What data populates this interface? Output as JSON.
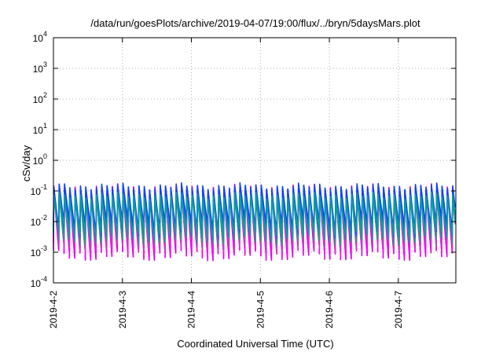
{
  "chart_data": {
    "type": "line",
    "title": "/data/run/goesPlots/archive/2019-04-07/19:00/flux/../bryn/5daysMars.plot",
    "xlabel": "Coordinated Universal Time (UTC)",
    "ylabel": "cSv/day",
    "yscale": "log",
    "ylim": [
      0.0001,
      10000
    ],
    "xlim": [
      "2019-04-02T00:00",
      "2019-04-07T20:00"
    ],
    "y_ticks": [
      {
        "base": "10",
        "exp": "-4",
        "value": 0.0001
      },
      {
        "base": "10",
        "exp": "-3",
        "value": 0.001
      },
      {
        "base": "10",
        "exp": "-2",
        "value": 0.01
      },
      {
        "base": "10",
        "exp": "-1",
        "value": 0.1
      },
      {
        "base": "10",
        "exp": "0",
        "value": 1
      },
      {
        "base": "10",
        "exp": "1",
        "value": 10
      },
      {
        "base": "10",
        "exp": "2",
        "value": 100
      },
      {
        "base": "10",
        "exp": "3",
        "value": 1000
      },
      {
        "base": "10",
        "exp": "4",
        "value": 10000
      }
    ],
    "x_ticks": [
      "2019-4-2",
      "2019-4-3",
      "2019-4-4",
      "2019-4-5",
      "2019-4-6",
      "2019-4-7"
    ],
    "grid": true,
    "legend": "none",
    "oscillation": {
      "period_hours": 1.85,
      "upper_bound": 0.16,
      "lower_bound": 0.0008
    },
    "series": [
      {
        "color": "#e000e0",
        "values": "sawtooth",
        "peak": 0.13,
        "trough": 0.0009
      },
      {
        "color": "#ff00ff",
        "values": "sawtooth",
        "peak": 0.11,
        "trough": 0.0012
      },
      {
        "color": "#c040c0",
        "values": "sawtooth",
        "peak": 0.09,
        "trough": 0.0018
      },
      {
        "color": "#20a080",
        "values": "sawtooth",
        "peak": 0.08,
        "trough": 0.003
      },
      {
        "color": "#2060e0",
        "values": "sawtooth",
        "peak": 0.12,
        "trough": 0.005
      },
      {
        "color": "#1040ff",
        "values": "sawtooth",
        "peak": 0.14,
        "trough": 0.007
      },
      {
        "color": "#00a0a0",
        "values": "sawtooth",
        "peak": 0.07,
        "trough": 0.004
      }
    ]
  }
}
